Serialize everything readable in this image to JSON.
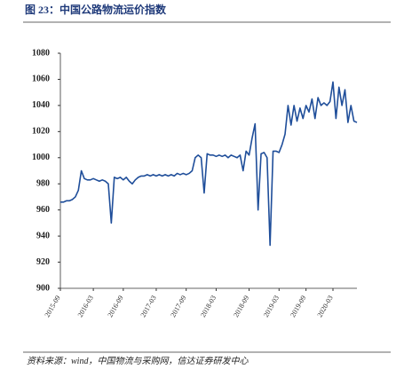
{
  "chart_data": {
    "type": "line",
    "title": "图 23：中国公路物流运价指数",
    "source": "资料来源：wind，中国物流与采购网，信达证券研发中心",
    "categories": [
      "2015-09",
      null,
      null,
      null,
      null,
      null,
      null,
      null,
      null,
      null,
      null,
      "2016-03",
      null,
      null,
      null,
      null,
      null,
      null,
      null,
      null,
      null,
      "2016-09",
      null,
      null,
      null,
      null,
      null,
      null,
      null,
      null,
      null,
      null,
      "2017-03",
      null,
      null,
      null,
      null,
      null,
      null,
      null,
      null,
      null,
      "2017-09",
      null,
      null,
      null,
      null,
      null,
      null,
      null,
      null,
      null,
      "2018-03",
      null,
      null,
      null,
      null,
      null,
      null,
      null,
      null,
      null,
      null,
      "2018-09",
      null,
      null,
      null,
      null,
      null,
      null,
      null,
      null,
      null,
      "2019-03",
      null,
      null,
      null,
      null,
      null,
      null,
      null,
      null,
      "2019-09",
      null,
      null,
      null,
      null,
      null,
      null,
      null,
      null,
      "2020-03",
      null,
      null,
      null,
      null,
      null,
      null,
      null,
      null
    ],
    "series": [
      {
        "name": "中国公路物流运价指数",
        "color": "#1f4e9a",
        "values": [
          966,
          966,
          967,
          967,
          968,
          970,
          975,
          990,
          984,
          983,
          983,
          984,
          983,
          982,
          983,
          982,
          980,
          950,
          985,
          984,
          985,
          983,
          985,
          982,
          980,
          983,
          985,
          986,
          986,
          987,
          986,
          987,
          986,
          987,
          986,
          987,
          986,
          987,
          986,
          988,
          987,
          988,
          987,
          988,
          990,
          1000,
          1002,
          1000,
          973,
          1003,
          1002,
          1002,
          1001,
          1002,
          1001,
          1002,
          1000,
          1002,
          1001,
          1000,
          1002,
          990,
          1005,
          1002,
          1015,
          1026,
          960,
          1003,
          1004,
          1000,
          933,
          1005,
          1005,
          1004,
          1010,
          1018,
          1040,
          1025,
          1040,
          1028,
          1038,
          1030,
          1040,
          1035,
          1045,
          1030,
          1046,
          1040,
          1042,
          1040,
          1043,
          1058,
          1030,
          1054,
          1040,
          1052,
          1027,
          1040,
          1028,
          1027
        ]
      }
    ],
    "ylim": [
      900,
      1080
    ],
    "yticks": [
      900,
      920,
      940,
      960,
      980,
      1000,
      1020,
      1040,
      1060,
      1080
    ]
  }
}
